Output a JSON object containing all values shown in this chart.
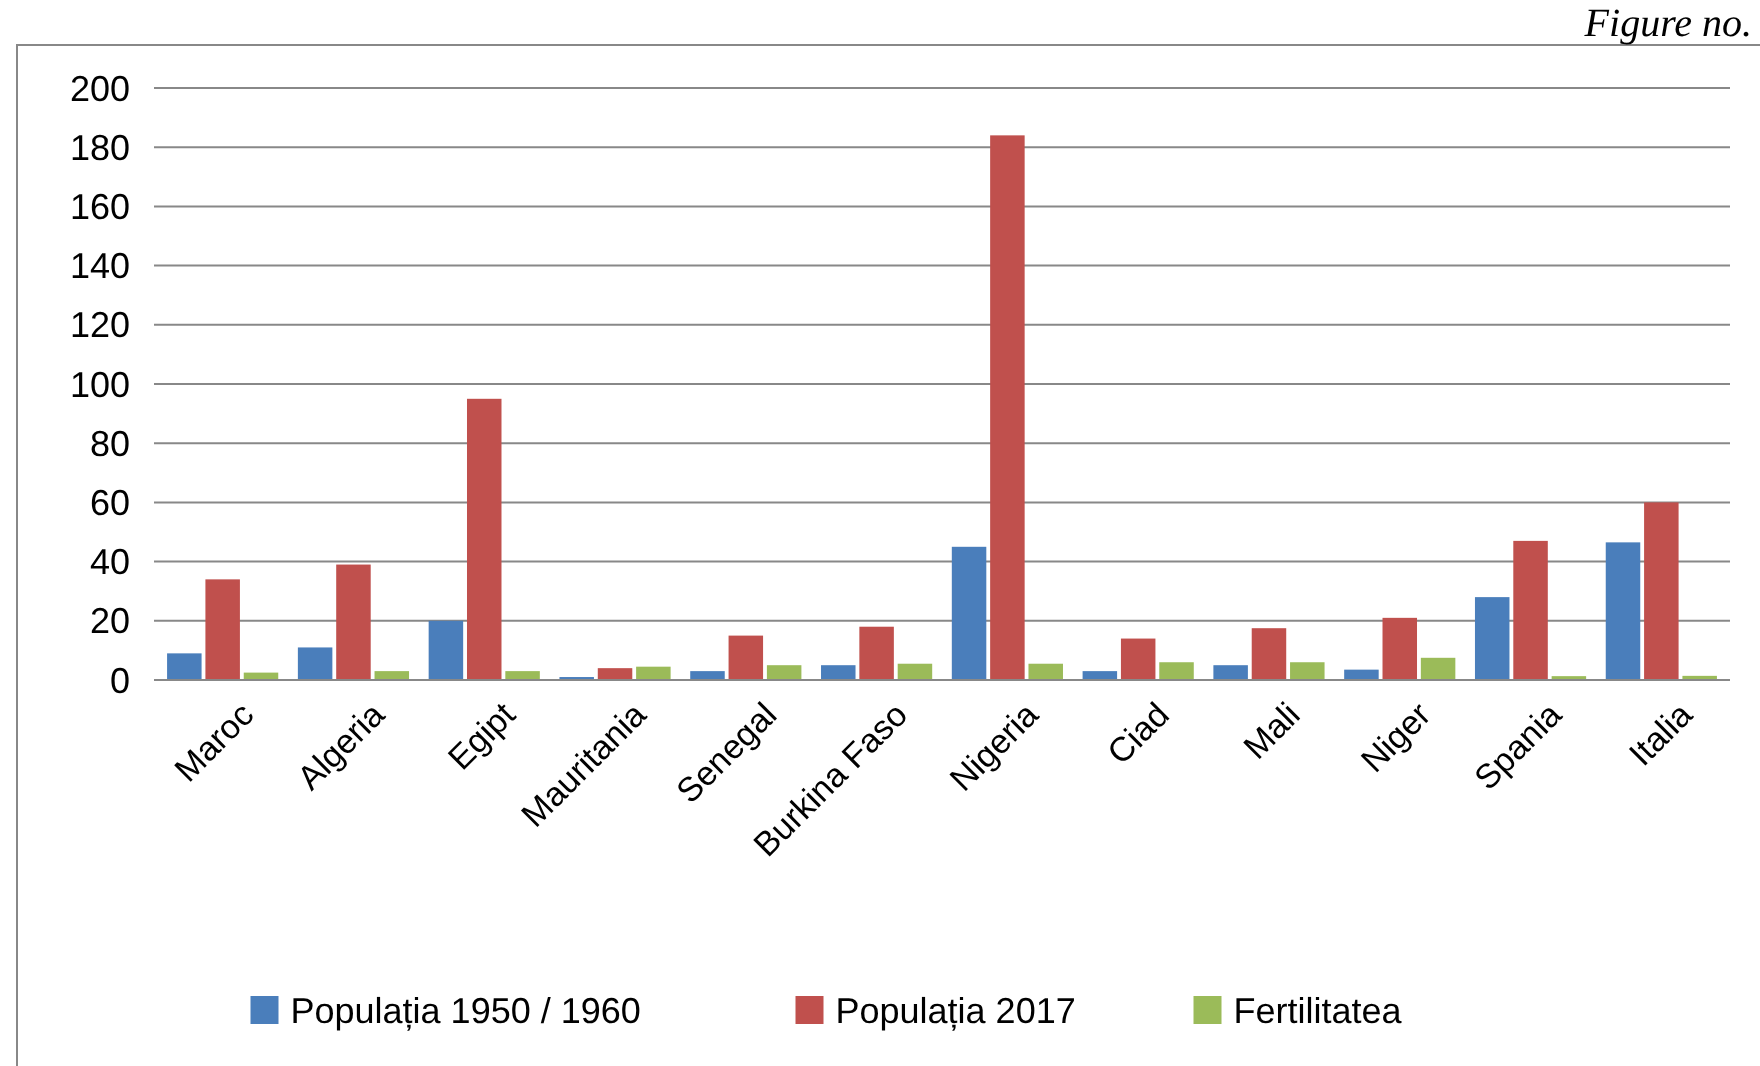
{
  "chart_data": {
    "type": "bar",
    "categories": [
      "Maroc",
      "Algeria",
      "Egipt",
      "Mauritania",
      "Senegal",
      "Burkina Faso",
      "Nigeria",
      "Ciad",
      "Mali",
      "Niger",
      "Spania",
      "Italia"
    ],
    "series": [
      {
        "name": "Populația 1950 / 1960",
        "color": "#4a7ebb",
        "values": [
          9,
          11,
          20,
          1,
          3,
          5,
          45,
          3,
          5,
          3.5,
          28,
          46.5
        ]
      },
      {
        "name": "Populația 2017",
        "color": "#c0504d",
        "values": [
          34,
          39,
          95,
          4,
          15,
          18,
          184,
          14,
          17.5,
          21,
          47,
          60
        ]
      },
      {
        "name": "Fertilitatea",
        "color": "#9bbb59",
        "values": [
          2.5,
          3,
          3,
          4.5,
          5,
          5.5,
          5.5,
          6,
          6,
          7.5,
          1.3,
          1.4
        ]
      }
    ],
    "ylim": [
      0,
      200
    ],
    "yticks": [
      0,
      20,
      40,
      60,
      80,
      100,
      120,
      140,
      160,
      180,
      200
    ],
    "grid": "y",
    "legend": "bottom",
    "annotations": [
      "Figure no."
    ]
  }
}
